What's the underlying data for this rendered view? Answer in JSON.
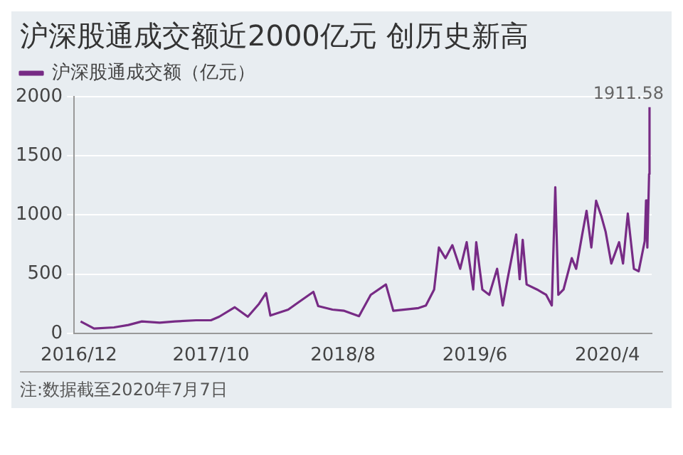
{
  "chart_data": {
    "type": "line",
    "title": "沪深股通成交额近2000亿元 创历史新高",
    "x": [
      "2016-12-05",
      "2017-01-05",
      "2017-02-20",
      "2017-03-25",
      "2017-04-25",
      "2017-06-05",
      "2017-07-10",
      "2017-08-28",
      "2017-10-01",
      "2017-10-20",
      "2017-11-25",
      "2017-12-25",
      "2018-01-20",
      "2018-02-05",
      "2018-02-15",
      "2018-03-28",
      "2018-04-20",
      "2018-05-25",
      "2018-06-05",
      "2018-07-08",
      "2018-08-04",
      "2018-09-07",
      "2018-10-04",
      "2018-11-08",
      "2018-11-25",
      "2019-01-22",
      "2019-02-08",
      "2019-02-27",
      "2019-03-10",
      "2019-03-25",
      "2019-04-10",
      "2019-04-28",
      "2019-05-13",
      "2019-05-28",
      "2019-06-04",
      "2019-06-18",
      "2019-07-04",
      "2019-07-22",
      "2019-08-04",
      "2019-08-15",
      "2019-09-04",
      "2019-09-12",
      "2019-09-19",
      "2019-09-28",
      "2019-10-22",
      "2019-11-12",
      "2019-11-25",
      "2019-12-03",
      "2019-12-10",
      "2019-12-22",
      "2020-01-10",
      "2020-01-20",
      "2020-02-03",
      "2020-02-13",
      "2020-02-24",
      "2020-03-06",
      "2020-03-18",
      "2020-03-28",
      "2020-04-10",
      "2020-04-28",
      "2020-05-07",
      "2020-05-18",
      "2020-06-01",
      "2020-06-12",
      "2020-06-26",
      "2020-06-29",
      "2020-07-02",
      "2020-07-06",
      "2020-07-07"
    ],
    "series": [
      {
        "name": "沪深股通成交额（亿元）",
        "color": "#772b85",
        "values": [
          100,
          40,
          50,
          70,
          100,
          90,
          100,
          110,
          110,
          140,
          220,
          140,
          250,
          340,
          150,
          200,
          260,
          350,
          230,
          200,
          190,
          145,
          325,
          413,
          190,
          213,
          235,
          370,
          725,
          635,
          745,
          545,
          770,
          370,
          770,
          370,
          325,
          545,
          235,
          457,
          835,
          457,
          790,
          413,
          370,
          325,
          235,
          1235,
          325,
          370,
          635,
          545,
          835,
          1035,
          725,
          1120,
          990,
          857,
          590,
          770,
          590,
          1012,
          545,
          524,
          780,
          1124,
          725,
          1346,
          1911.58
        ]
      }
    ],
    "xlim": [
      "2016-11-20",
      "2020-07-12"
    ],
    "xticks": [
      {
        "value": "2016-12-01",
        "label": "2016/12"
      },
      {
        "value": "2017-10-01",
        "label": "2017/10"
      },
      {
        "value": "2018-08-01",
        "label": "2018/8"
      },
      {
        "value": "2019-06-01",
        "label": "2019/6"
      },
      {
        "value": "2020-04-01",
        "label": "2020/4"
      }
    ],
    "ylim": [
      0,
      2000
    ],
    "yticks": [
      0,
      500,
      1000,
      1500,
      2000
    ],
    "grid": "y",
    "legend": "top left",
    "marker": "none",
    "line_style": "solid",
    "annotations": [
      {
        "text": "1911.58",
        "x": "2020-07-07",
        "y": 1911.58
      },
      "注:数据截至2020年7月7日"
    ]
  }
}
